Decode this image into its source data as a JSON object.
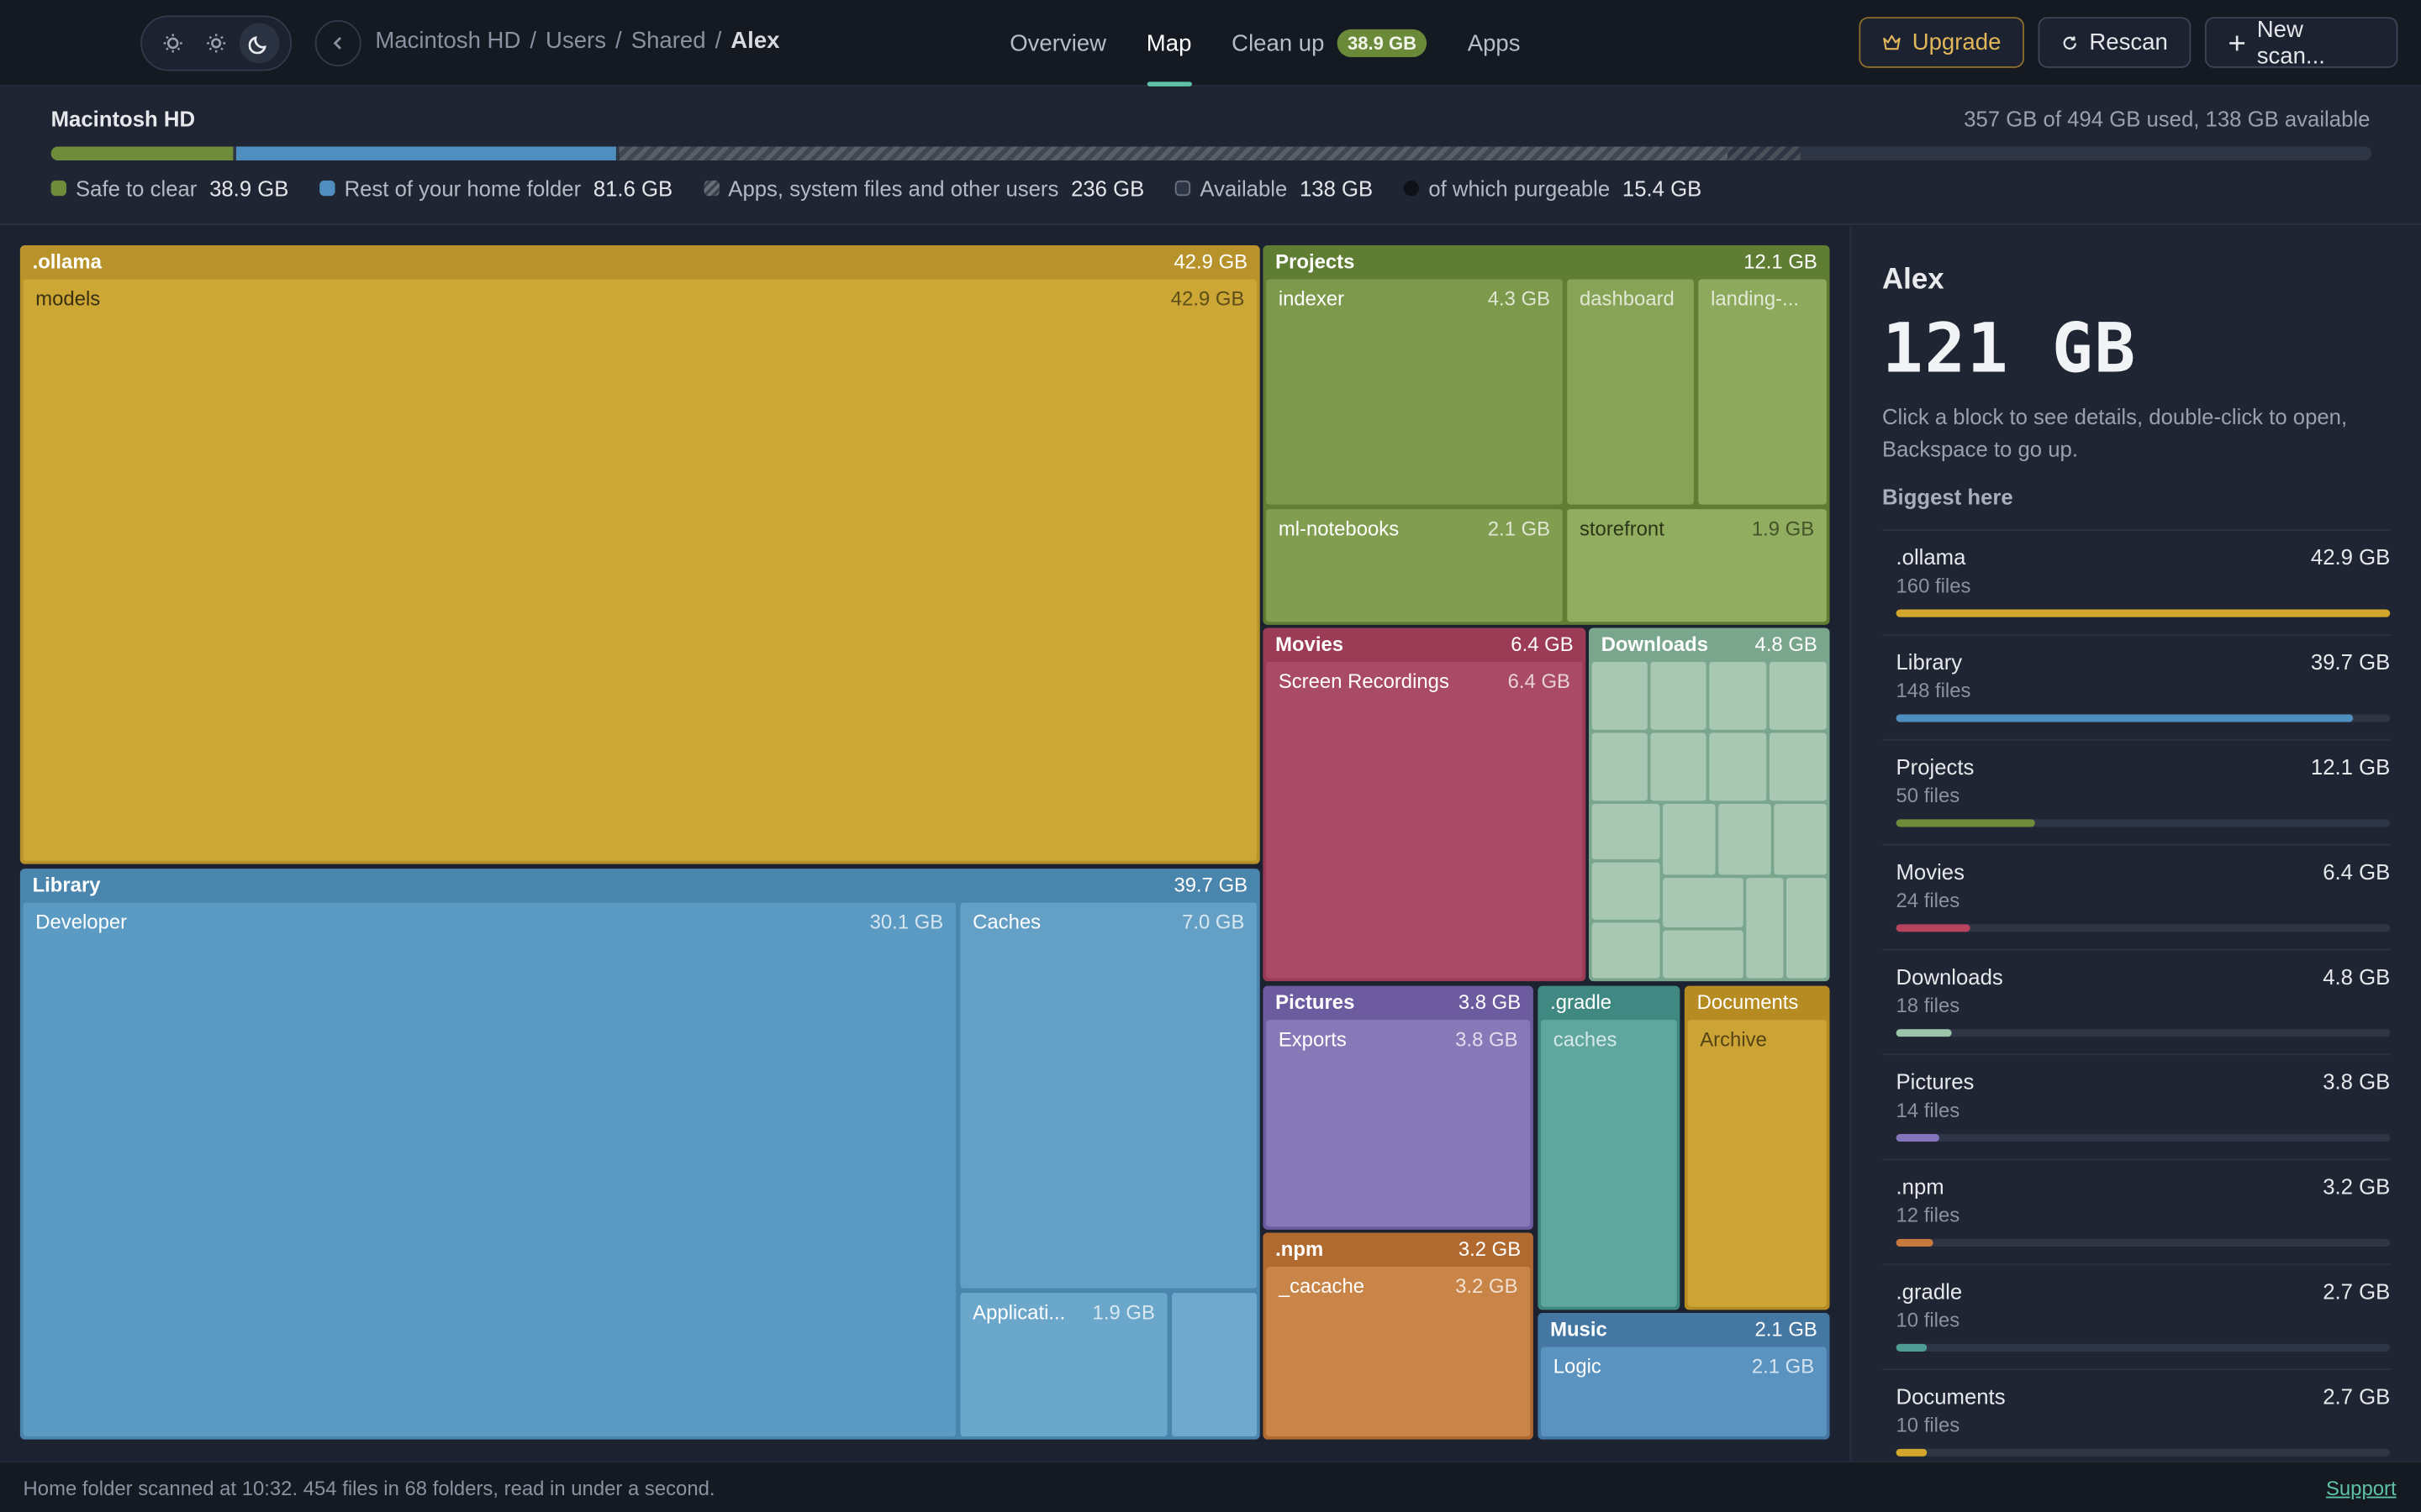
{
  "breadcrumb": [
    "Macintosh HD",
    "Users",
    "Shared",
    "Alex"
  ],
  "nav": {
    "overview": "Overview",
    "map": "Map",
    "cleanup": "Clean up",
    "cleanup_badge": "38.9 GB",
    "apps": "Apps"
  },
  "actions": {
    "upgrade": "Upgrade",
    "rescan": "Rescan",
    "newscan": "New scan..."
  },
  "disk": {
    "title": "Macintosh HD",
    "used_text": "357 GB of 494 GB used, 138 GB available",
    "legend": [
      {
        "label": "Safe to clear",
        "value": "38.9 GB",
        "color": "#6e8c3a"
      },
      {
        "label": "Rest of your home folder",
        "value": "81.6 GB",
        "color": "#4f8fbf"
      },
      {
        "label": "Apps, system files and other users",
        "value": "236 GB",
        "color": "#6a6e76"
      },
      {
        "label": "Available",
        "value": "138 GB",
        "color": "#2e3646"
      },
      {
        "label": "of which purgeable",
        "value": "15.4 GB",
        "color": "#111418"
      }
    ]
  },
  "treemap": {
    "ollama": {
      "name": ".ollama",
      "size": "42.9 GB",
      "child": {
        "name": "models",
        "size": "42.9 GB"
      }
    },
    "library": {
      "name": "Library",
      "size": "39.7 GB",
      "developer": {
        "name": "Developer",
        "size": "30.1 GB"
      },
      "caches": {
        "name": "Caches",
        "size": "7.0 GB"
      },
      "applications": {
        "name": "Applicati...",
        "size": "1.9 GB"
      }
    },
    "projects": {
      "name": "Projects",
      "size": "12.1 GB",
      "indexer": {
        "name": "indexer",
        "size": "4.3 GB"
      },
      "dashboard": {
        "name": "dashboard"
      },
      "landing": {
        "name": "landing-..."
      },
      "mlnotebooks": {
        "name": "ml-notebooks",
        "size": "2.1 GB"
      },
      "storefront": {
        "name": "storefront",
        "size": "1.9 GB"
      }
    },
    "movies": {
      "name": "Movies",
      "size": "6.4 GB",
      "child": {
        "name": "Screen Recordings",
        "size": "6.4 GB"
      }
    },
    "downloads": {
      "name": "Downloads",
      "size": "4.8 GB"
    },
    "pictures": {
      "name": "Pictures",
      "size": "3.8 GB",
      "child": {
        "name": "Exports",
        "size": "3.8 GB"
      }
    },
    "gradle": {
      "name": ".gradle",
      "child": {
        "name": "caches"
      }
    },
    "documents": {
      "name": "Documents",
      "child": {
        "name": "Archive"
      }
    },
    "npm": {
      "name": ".npm",
      "size": "3.2 GB",
      "child": {
        "name": "_cacache",
        "size": "3.2 GB"
      }
    },
    "music": {
      "name": "Music",
      "size": "2.1 GB",
      "child": {
        "name": "Logic",
        "size": "2.1 GB"
      }
    }
  },
  "sidebar": {
    "name": "Alex",
    "size": "121 GB",
    "hint": "Click a block to see details, double-click to open, Backspace to go up.",
    "subheading": "Biggest here",
    "items": [
      {
        "name": ".ollama",
        "size": "42.9 GB",
        "count": "160 files",
        "fraction": 1.0,
        "color": "#d4a72c"
      },
      {
        "name": "Library",
        "size": "39.7 GB",
        "count": "148 files",
        "fraction": 0.925,
        "color": "#4f8fbf"
      },
      {
        "name": "Projects",
        "size": "12.1 GB",
        "count": "50 files",
        "fraction": 0.282,
        "color": "#6e8c3a"
      },
      {
        "name": "Movies",
        "size": "6.4 GB",
        "count": "24 files",
        "fraction": 0.149,
        "color": "#b8435f"
      },
      {
        "name": "Downloads",
        "size": "4.8 GB",
        "count": "18 files",
        "fraction": 0.112,
        "color": "#9cc4ab"
      },
      {
        "name": "Pictures",
        "size": "3.8 GB",
        "count": "14 files",
        "fraction": 0.089,
        "color": "#8474bc"
      },
      {
        "name": ".npm",
        "size": "3.2 GB",
        "count": "12 files",
        "fraction": 0.075,
        "color": "#c67a3d"
      },
      {
        "name": ".gradle",
        "size": "2.7 GB",
        "count": "10 files",
        "fraction": 0.063,
        "color": "#4e9c94"
      },
      {
        "name": "Documents",
        "size": "2.7 GB",
        "count": "10 files",
        "fraction": 0.063,
        "color": "#d4a72c"
      }
    ]
  },
  "status": {
    "text": "Home folder scanned at 10:32. 454 files in 68 folders, read in under a second.",
    "support": "Support"
  }
}
